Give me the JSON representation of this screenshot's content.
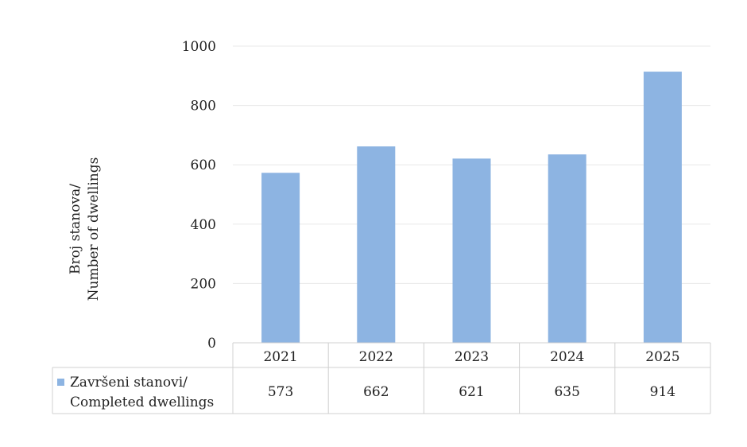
{
  "chart_data": {
    "type": "bar",
    "categories": [
      "2021",
      "2022",
      "2023",
      "2024",
      "2025"
    ],
    "series": [
      {
        "name": "Završeni stanovi/ Completed dwellings",
        "name_lines": [
          "Završeni stanovi/",
          "Completed dwellings"
        ],
        "values": [
          573,
          662,
          621,
          635,
          914
        ],
        "color": "#8db4e2"
      }
    ],
    "title": "",
    "xlabel": "",
    "ylabel": "Broj stanova/ Number of dwellings",
    "ylabel_lines": [
      "Broj stanova/",
      "Number of dwellings"
    ],
    "ylim": [
      0,
      1000
    ],
    "yticks": [
      "0",
      "200",
      "400",
      "600",
      "800",
      "1000"
    ],
    "grid": true,
    "legend": "data-table"
  }
}
